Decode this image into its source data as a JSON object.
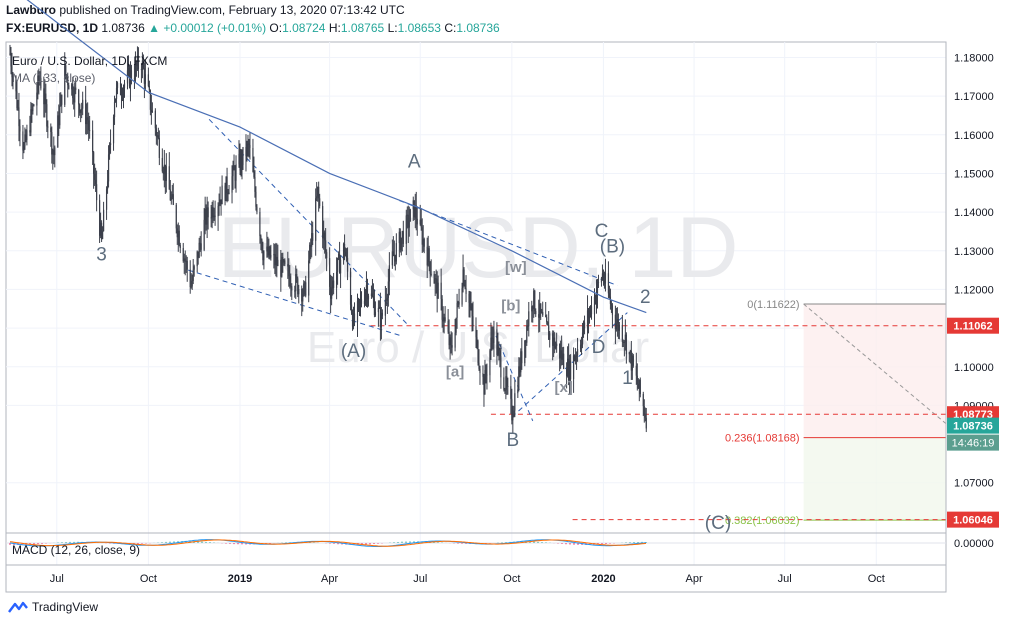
{
  "header": {
    "author": "Lawburo",
    "published_text": "published on TradingView.com, February 13, 2020 07:13:42 UTC",
    "symbol": "FX:EURUSD, 1D",
    "price": "1.08736",
    "change_arrow": "▲",
    "change": "+0.00012 (+0.01%)",
    "o_label": "O:",
    "o_value": "1.08724",
    "h_label": "H:",
    "h_value": "1.08765",
    "l_label": "L:",
    "l_value": "1.08653",
    "c_label": "C:",
    "c_value": "1.08736"
  },
  "footer": {
    "brand": "TradingView"
  },
  "colors": {
    "up": "#26a69a",
    "candle": "#3b3f4a",
    "ma": "#4a6fb5",
    "trend": "#2f5fb3",
    "red_line": "#e53935",
    "green_fib": "#8bc34a",
    "wave_label": "#5d6d7e",
    "sub_label": "#8a8f98"
  },
  "chart_data": {
    "type": "candlestick",
    "legend_title": "Euro / U.S. Dollar, 1D, FXCM",
    "ma_label": "MA (133, close)",
    "watermark_symbol": "EURUSD, 1D",
    "watermark_name": "Euro / U.S. Dollar",
    "price_axis_ticks": [
      "1.18000",
      "1.17000",
      "1.16000",
      "1.15000",
      "1.14000",
      "1.13000",
      "1.12000",
      "1.11000",
      "1.10000",
      "1.09000",
      "1.07000"
    ],
    "price_axis_tick_values": [
      1.18,
      1.17,
      1.16,
      1.15,
      1.14,
      1.13,
      1.12,
      1.11,
      1.1,
      1.09,
      1.07
    ],
    "ylim": [
      1.057,
      1.184
    ],
    "time_axis_ticks": [
      "Jul",
      "Oct",
      "2019",
      "Apr",
      "Jul",
      "Oct",
      "2020",
      "Apr",
      "Jul",
      "Oct"
    ],
    "time_axis_tick_dates": [
      "2018-07-01",
      "2018-10-01",
      "2019-01-01",
      "2019-04-01",
      "2019-07-01",
      "2019-10-01",
      "2020-01-01",
      "2020-04-01",
      "2020-07-01",
      "2020-10-01"
    ],
    "xlim": [
      "2018-05-11",
      "2020-12-10"
    ],
    "price_path": [
      [
        "2018-05-15",
        1.181
      ],
      [
        "2018-05-29",
        1.156
      ],
      [
        "2018-06-14",
        1.175
      ],
      [
        "2018-06-28",
        1.155
      ],
      [
        "2018-07-09",
        1.176
      ],
      [
        "2018-08-01",
        1.164
      ],
      [
        "2018-08-15",
        1.132
      ],
      [
        "2018-08-28",
        1.17
      ],
      [
        "2018-09-24",
        1.179
      ],
      [
        "2018-10-12",
        1.157
      ],
      [
        "2018-10-31",
        1.135
      ],
      [
        "2018-11-13",
        1.121
      ],
      [
        "2018-11-27",
        1.138
      ],
      [
        "2018-12-20",
        1.147
      ],
      [
        "2019-01-10",
        1.157
      ],
      [
        "2019-01-24",
        1.13
      ],
      [
        "2019-02-14",
        1.125
      ],
      [
        "2019-03-07",
        1.119
      ],
      [
        "2019-03-20",
        1.145
      ],
      [
        "2019-04-02",
        1.12
      ],
      [
        "2019-04-16",
        1.131
      ],
      [
        "2019-04-25",
        1.111
      ],
      [
        "2019-05-08",
        1.121
      ],
      [
        "2019-05-23",
        1.112
      ],
      [
        "2019-06-03",
        1.128
      ],
      [
        "2019-06-25",
        1.141
      ],
      [
        "2019-07-18",
        1.12
      ],
      [
        "2019-08-01",
        1.104
      ],
      [
        "2019-08-13",
        1.125
      ],
      [
        "2019-09-03",
        1.095
      ],
      [
        "2019-09-12",
        1.109
      ],
      [
        "2019-10-01",
        1.088
      ],
      [
        "2019-10-21",
        1.118
      ],
      [
        "2019-11-04",
        1.11
      ],
      [
        "2019-11-28",
        1.099
      ],
      [
        "2019-12-31",
        1.124
      ],
      [
        "2020-01-13",
        1.112
      ],
      [
        "2020-01-22",
        1.108
      ],
      [
        "2020-02-13",
        1.087
      ]
    ],
    "ma_path": [
      [
        "2018-06-01",
        1.195
      ],
      [
        "2018-10-01",
        1.171
      ],
      [
        "2019-01-01",
        1.162
      ],
      [
        "2019-04-01",
        1.15
      ],
      [
        "2019-07-01",
        1.141
      ],
      [
        "2019-10-01",
        1.13
      ],
      [
        "2020-01-01",
        1.118
      ],
      [
        "2020-02-13",
        1.114
      ]
    ],
    "trend_lines": [
      {
        "from": [
          "2018-11-10",
          1.125
        ],
        "to": [
          "2019-06-12",
          1.108
        ]
      },
      {
        "from": [
          "2018-12-01",
          1.164
        ],
        "to": [
          "2019-06-18",
          1.111
        ]
      },
      {
        "from": [
          "2019-06-10",
          1.143
        ],
        "to": [
          "2020-01-15",
          1.121
        ]
      },
      {
        "from": [
          "2019-09-15",
          1.108
        ],
        "to": [
          "2019-10-22",
          1.086
        ]
      },
      {
        "from": [
          "2019-10-01",
          1.087
        ],
        "to": [
          "2020-01-25",
          1.114
        ]
      }
    ],
    "horizontal_levels": [
      {
        "value": 1.11062,
        "label": "1.11062",
        "color": "#e53935",
        "from": "2019-05-12",
        "style": "dashed"
      },
      {
        "value": 1.08773,
        "label": "1.08773",
        "color": "#e53935",
        "from": "2019-09-10",
        "style": "dashed"
      },
      {
        "value": 1.06046,
        "label": "1.06046",
        "color": "#e53935",
        "from": "2019-12-01",
        "style": "dashed"
      }
    ],
    "current_price": {
      "value": 1.08736,
      "label": "1.08736",
      "countdown": "14:46:19"
    },
    "fib": {
      "start_date": "2020-07-20",
      "end_date": "2020-12-10",
      "levels": [
        {
          "value": 1.11622,
          "label": "0(1.11622)",
          "color": "#888888"
        },
        {
          "value": 1.08168,
          "label": "0.236(1.08168)",
          "color": "#e53935"
        },
        {
          "value": 1.06032,
          "label": "0.382(1.06032)",
          "color": "#8bc34a"
        }
      ]
    },
    "wave_labels": [
      {
        "text": "3",
        "date": "2018-08-15",
        "price": 1.1275,
        "kind": "wave"
      },
      {
        "text": "A",
        "date": "2019-06-25",
        "price": 1.1515,
        "kind": "wave"
      },
      {
        "text": "(A)",
        "date": "2019-04-25",
        "price": 1.1025,
        "kind": "wave"
      },
      {
        "text": "[a]",
        "date": "2019-08-05",
        "price": 1.0975,
        "kind": "sub"
      },
      {
        "text": "[b]",
        "date": "2019-09-30",
        "price": 1.1145,
        "kind": "sub"
      },
      {
        "text": "[w]",
        "date": "2019-10-05",
        "price": 1.1245,
        "kind": "sub"
      },
      {
        "text": "[x]",
        "date": "2019-11-22",
        "price": 1.0935,
        "kind": "sub"
      },
      {
        "text": "B",
        "date": "2019-10-02",
        "price": 1.0795,
        "kind": "wave"
      },
      {
        "text": "C",
        "date": "2019-12-30",
        "price": 1.1335,
        "kind": "wave"
      },
      {
        "text": "(B)",
        "date": "2020-01-10",
        "price": 1.1295,
        "kind": "wave"
      },
      {
        "text": "D",
        "date": "2019-12-27",
        "price": 1.1035,
        "kind": "wave"
      },
      {
        "text": "1",
        "date": "2020-01-25",
        "price": 1.0955,
        "kind": "wave"
      },
      {
        "text": "2",
        "date": "2020-02-12",
        "price": 1.1165,
        "kind": "wave"
      },
      {
        "text": "(C)",
        "date": "2020-04-25",
        "price": 1.058,
        "kind": "wave"
      }
    ],
    "macd": {
      "label": "MACD (12, 26, close, 9)",
      "zero_label": "0.00000",
      "end_date": "2020-02-13"
    }
  }
}
